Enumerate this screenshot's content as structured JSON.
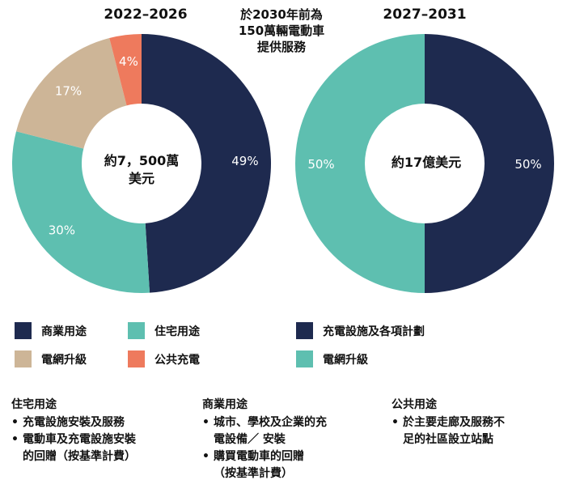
{
  "header": {
    "center_title_lines": [
      "於2030年前為",
      "150萬輛電動車",
      "提供服務"
    ]
  },
  "colors": {
    "navy": "#1e2a4f",
    "teal": "#5ebfb0",
    "tan": "#cdb597",
    "coral": "#ee7a5d"
  },
  "chart_data": [
    {
      "type": "pie",
      "title": "2022–2026",
      "center_label_lines": [
        "約7，500萬",
        "美元"
      ],
      "slices": [
        {
          "label": "商業用途",
          "value": 49,
          "display": "49%",
          "color": "#1e2a4f"
        },
        {
          "label": "住宅用途",
          "value": 30,
          "display": "30%",
          "color": "#5ebfb0"
        },
        {
          "label": "電網升級",
          "value": 17,
          "display": "17%",
          "color": "#cdb597"
        },
        {
          "label": "公共充電",
          "value": 4,
          "display": "4%",
          "color": "#ee7a5d"
        }
      ]
    },
    {
      "type": "pie",
      "title": "2027–2031",
      "center_label_lines": [
        "約17億美元"
      ],
      "slices": [
        {
          "label": "充電設施及各項計劃",
          "value": 50,
          "display": "50%",
          "color": "#1e2a4f"
        },
        {
          "label": "電網升級",
          "value": 50,
          "display": "50%",
          "color": "#5ebfb0"
        }
      ]
    }
  ],
  "legend": {
    "left": [
      {
        "label": "商業用途",
        "color": "#1e2a4f"
      },
      {
        "label": "住宅用途",
        "color": "#5ebfb0"
      },
      {
        "label": "電網升級",
        "color": "#cdb597"
      },
      {
        "label": "公共充電",
        "color": "#ee7a5d"
      }
    ],
    "right": [
      {
        "label": "充電設施及各項計劃",
        "color": "#1e2a4f"
      },
      {
        "label": "電網升級",
        "color": "#5ebfb0"
      }
    ]
  },
  "notes": [
    {
      "title": "住宅用途",
      "items": [
        [
          "充電設施安裝及服務"
        ],
        [
          "電動車及充電設施安裝",
          "的回贈（按基準計費）"
        ]
      ]
    },
    {
      "title": "商業用途",
      "items": [
        [
          "城市、學校及企業的充",
          "電設備／ 安裝"
        ],
        [
          "購買電動車的回贈",
          "（按基準計費）"
        ]
      ]
    },
    {
      "title": "公共用途",
      "items": [
        [
          "於主要走廊及服務不",
          "足的社區設立站點"
        ]
      ]
    }
  ]
}
